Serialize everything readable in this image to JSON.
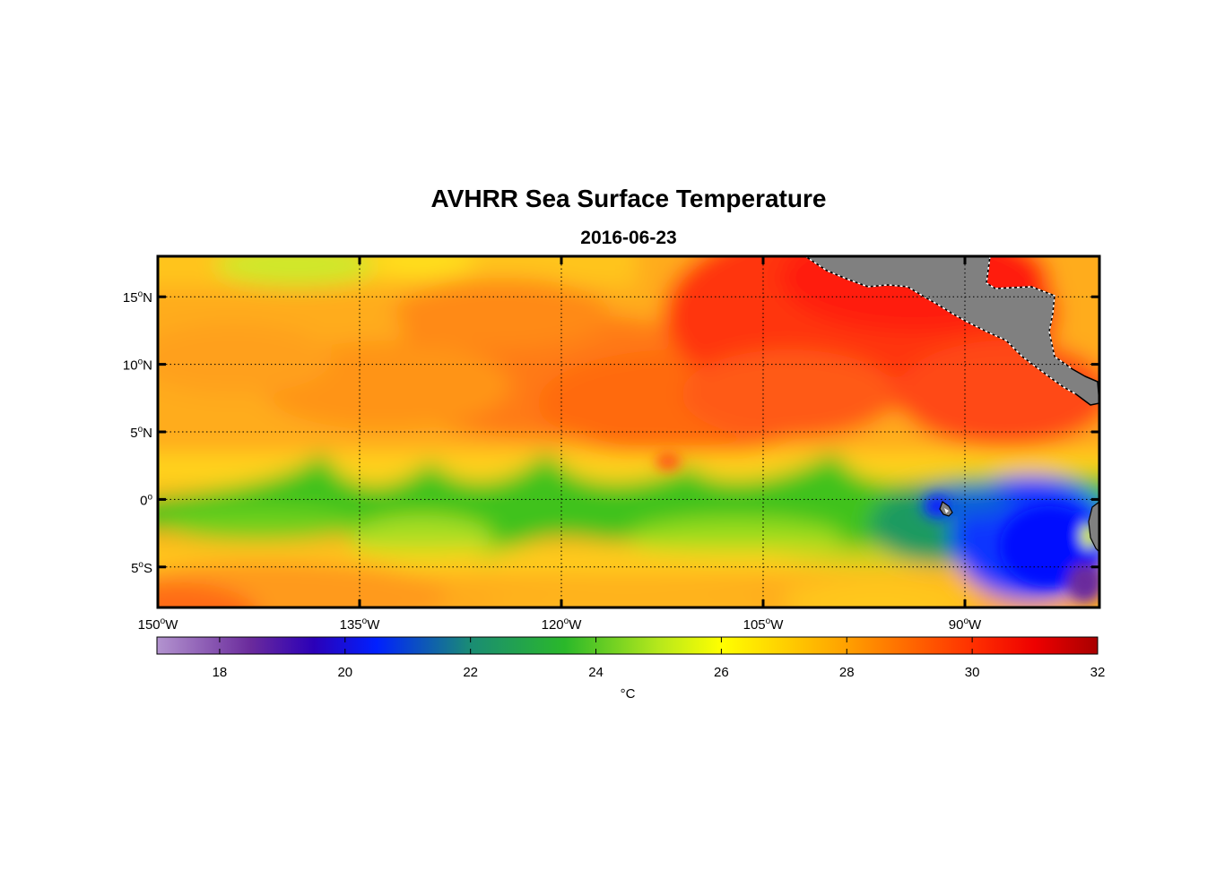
{
  "title": "AVHRR Sea Surface Temperature",
  "date": "2016-06-23",
  "map": {
    "lon_range": [
      -150,
      -80
    ],
    "lat_range": [
      -8,
      18
    ],
    "lon_ticks": [
      {
        "value": -150,
        "num": "150",
        "dir": "W"
      },
      {
        "value": -135,
        "num": "135",
        "dir": "W"
      },
      {
        "value": -120,
        "num": "120",
        "dir": "W"
      },
      {
        "value": -105,
        "num": "105",
        "dir": "W"
      },
      {
        "value": -90,
        "num": "90",
        "dir": "W"
      }
    ],
    "lat_ticks": [
      {
        "value": 15,
        "num": "15",
        "dir": "N"
      },
      {
        "value": 10,
        "num": "10",
        "dir": "N"
      },
      {
        "value": 5,
        "num": "5",
        "dir": "N"
      },
      {
        "value": 0,
        "num": "0",
        "dir": ""
      },
      {
        "value": -5,
        "num": "5",
        "dir": "S"
      }
    ],
    "degree_symbol": "o",
    "land_color": "#808080"
  },
  "colorbar": {
    "min": 17,
    "max": 32,
    "ticks": [
      18,
      20,
      22,
      24,
      26,
      28,
      30,
      32
    ],
    "unit": "°C",
    "colormap": [
      {
        "value": 17,
        "color": "#b394cf"
      },
      {
        "value": 18.5,
        "color": "#6a2a9c"
      },
      {
        "value": 19.5,
        "color": "#2b00b8"
      },
      {
        "value": 20.5,
        "color": "#0020ff"
      },
      {
        "value": 22,
        "color": "#1a8c74"
      },
      {
        "value": 23.5,
        "color": "#2ab82a"
      },
      {
        "value": 25,
        "color": "#b6e81c"
      },
      {
        "value": 26,
        "color": "#ffff00"
      },
      {
        "value": 28,
        "color": "#ffa000"
      },
      {
        "value": 30,
        "color": "#ff3000"
      },
      {
        "value": 31,
        "color": "#ee0000"
      },
      {
        "value": 32,
        "color": "#a80000"
      }
    ]
  }
}
